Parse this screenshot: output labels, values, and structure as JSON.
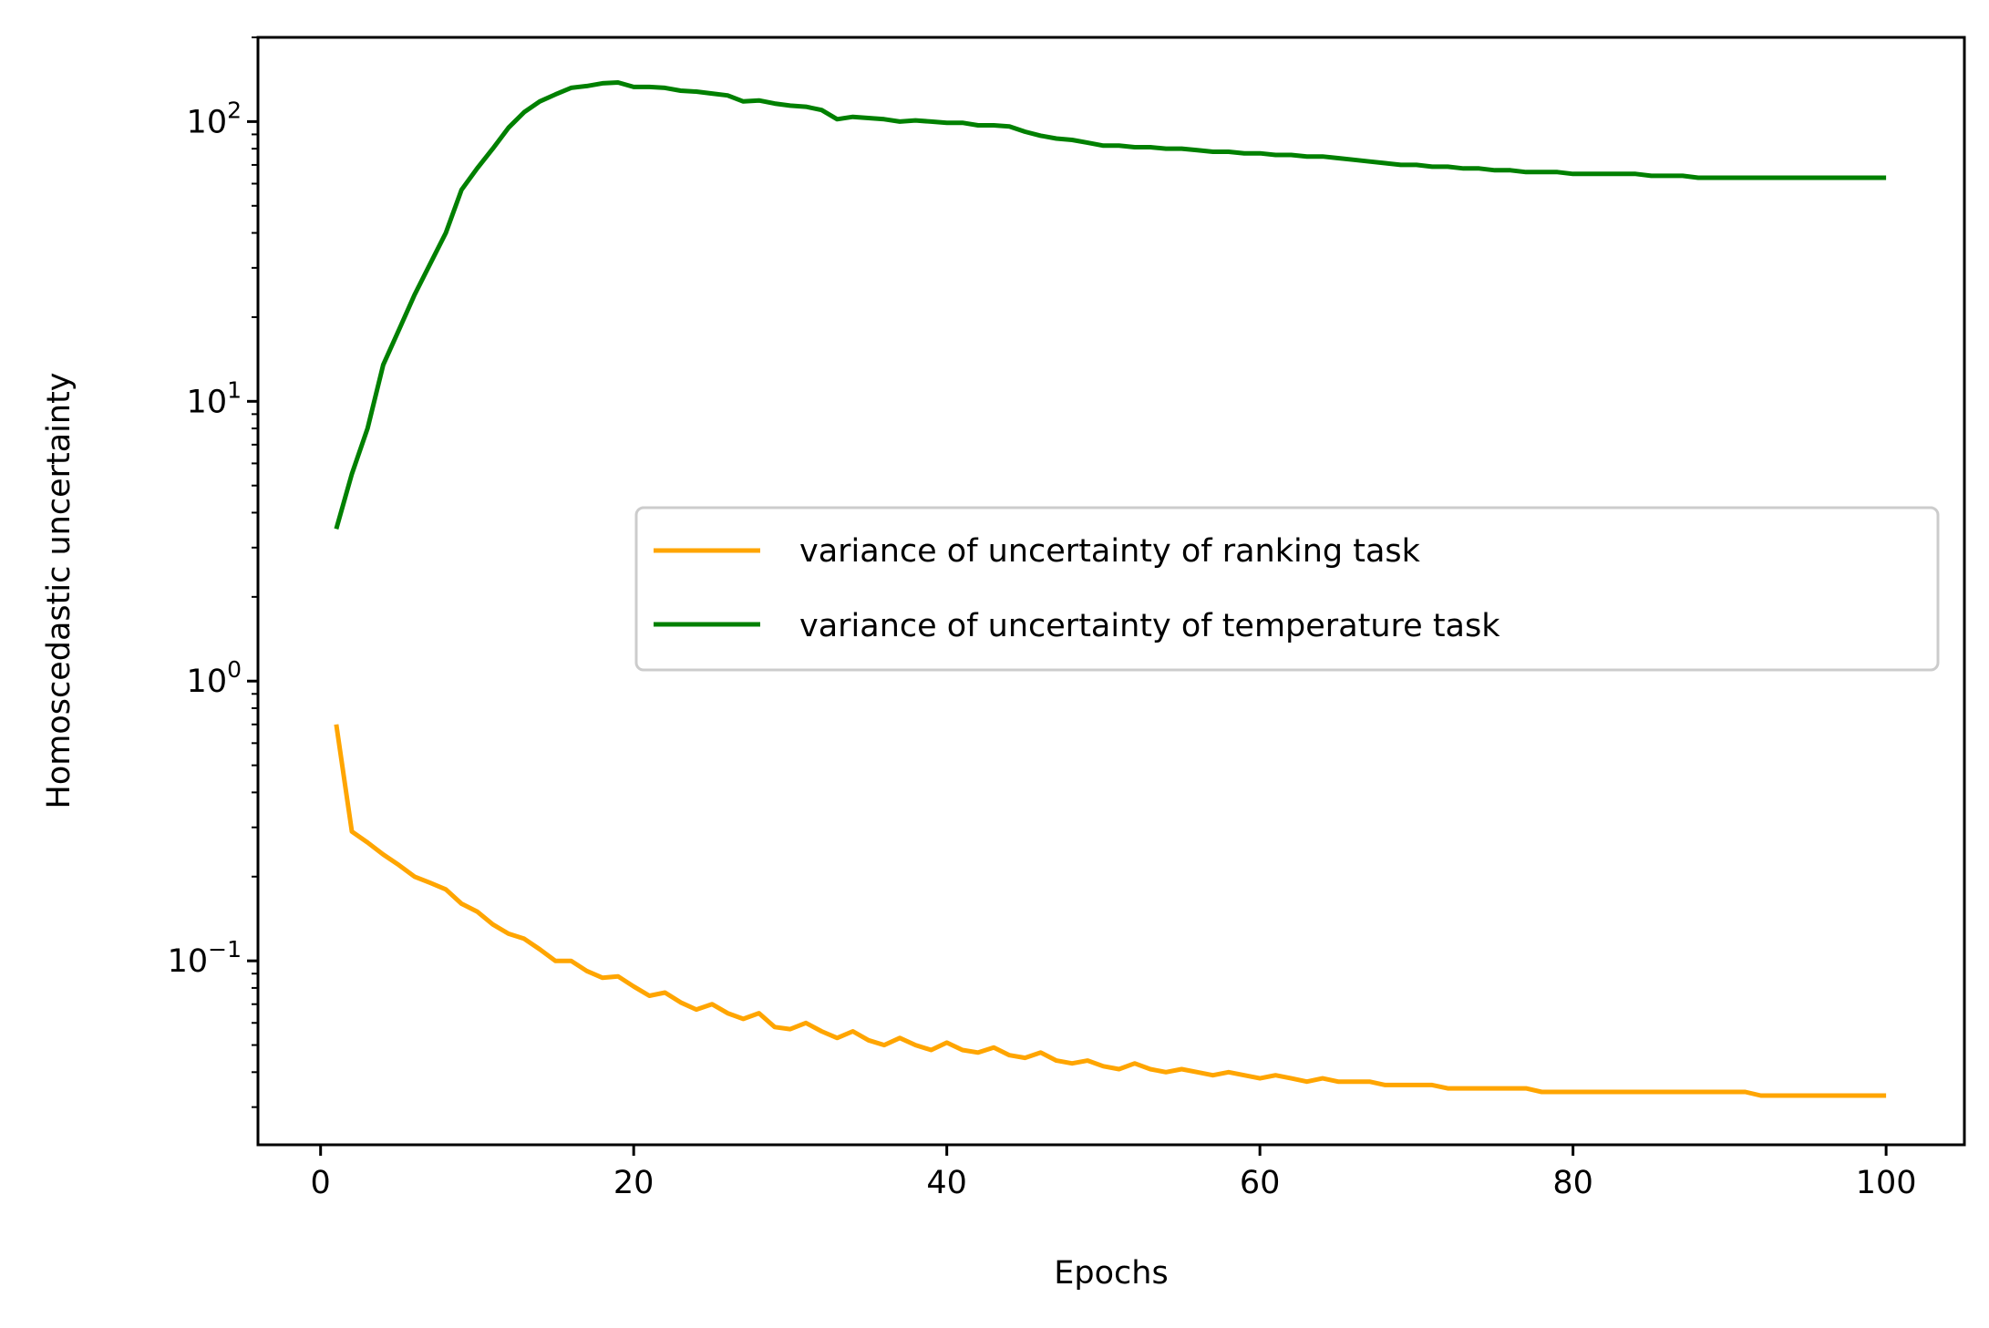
{
  "chart_data": {
    "type": "line",
    "title": "",
    "xlabel": "Epochs",
    "ylabel": "Homoscedastic uncertainty",
    "xlim": [
      -4,
      105
    ],
    "ylim": [
      0.022,
      200
    ],
    "yscale": "log",
    "xticks": [
      0,
      20,
      40,
      60,
      80,
      100
    ],
    "yticks": [
      {
        "value": 0.1,
        "base": "10",
        "exp": "−1"
      },
      {
        "value": 1,
        "base": "10",
        "exp": "0"
      },
      {
        "value": 10,
        "base": "10",
        "exp": "1"
      },
      {
        "value": 100,
        "base": "10",
        "exp": "2"
      }
    ],
    "grid": false,
    "legend_position": "center-right",
    "x": [
      1,
      2,
      3,
      4,
      5,
      6,
      7,
      8,
      9,
      10,
      11,
      12,
      13,
      14,
      15,
      16,
      17,
      18,
      19,
      20,
      21,
      22,
      23,
      24,
      25,
      26,
      27,
      28,
      29,
      30,
      31,
      32,
      33,
      34,
      35,
      36,
      37,
      38,
      39,
      40,
      41,
      42,
      43,
      44,
      45,
      46,
      47,
      48,
      49,
      50,
      51,
      52,
      53,
      54,
      55,
      56,
      57,
      58,
      59,
      60,
      61,
      62,
      63,
      64,
      65,
      66,
      67,
      68,
      69,
      70,
      71,
      72,
      73,
      74,
      75,
      76,
      77,
      78,
      79,
      80,
      81,
      82,
      83,
      84,
      85,
      86,
      87,
      88,
      89,
      90,
      91,
      92,
      93,
      94,
      95,
      96,
      97,
      98,
      99,
      100
    ],
    "series": [
      {
        "name": "variance of uncertainty of ranking task",
        "color": "#ffa500",
        "values": [
          0.7,
          0.29,
          0.265,
          0.24,
          0.22,
          0.2,
          0.19,
          0.18,
          0.16,
          0.15,
          0.135,
          0.125,
          0.12,
          0.11,
          0.1,
          0.1,
          0.092,
          0.087,
          0.088,
          0.081,
          0.075,
          0.077,
          0.071,
          0.067,
          0.07,
          0.065,
          0.062,
          0.065,
          0.058,
          0.057,
          0.06,
          0.056,
          0.053,
          0.056,
          0.052,
          0.05,
          0.053,
          0.05,
          0.048,
          0.051,
          0.048,
          0.047,
          0.049,
          0.046,
          0.045,
          0.047,
          0.044,
          0.043,
          0.044,
          0.042,
          0.041,
          0.043,
          0.041,
          0.04,
          0.041,
          0.04,
          0.039,
          0.04,
          0.039,
          0.038,
          0.039,
          0.038,
          0.037,
          0.038,
          0.037,
          0.037,
          0.037,
          0.036,
          0.036,
          0.036,
          0.036,
          0.035,
          0.035,
          0.035,
          0.035,
          0.035,
          0.035,
          0.034,
          0.034,
          0.034,
          0.034,
          0.034,
          0.034,
          0.034,
          0.034,
          0.034,
          0.034,
          0.034,
          0.034,
          0.034,
          0.034,
          0.033,
          0.033,
          0.033,
          0.033,
          0.033,
          0.033,
          0.033,
          0.033,
          0.033
        ]
      },
      {
        "name": "variance of uncertainty of temperature task",
        "color": "#008000",
        "values": [
          3.5,
          5.5,
          8,
          13.5,
          18,
          24,
          31,
          40,
          57,
          68,
          80,
          95,
          108,
          118,
          125,
          132,
          134,
          137,
          138,
          133,
          133,
          132,
          129,
          128,
          126,
          124,
          118,
          119,
          116,
          114,
          113,
          110,
          102,
          104,
          103,
          102,
          100,
          101,
          100,
          99,
          99,
          97,
          97,
          96,
          92,
          89,
          87,
          86,
          84,
          82,
          82,
          81,
          81,
          80,
          80,
          79,
          78,
          78,
          77,
          77,
          76,
          76,
          75,
          75,
          74,
          73,
          72,
          71,
          70,
          70,
          69,
          69,
          68,
          68,
          67,
          67,
          66,
          66,
          66,
          65,
          65,
          65,
          65,
          65,
          64,
          64,
          64,
          63,
          63,
          63,
          63,
          63,
          63,
          63,
          63,
          63,
          63,
          63,
          63,
          63
        ]
      }
    ]
  }
}
